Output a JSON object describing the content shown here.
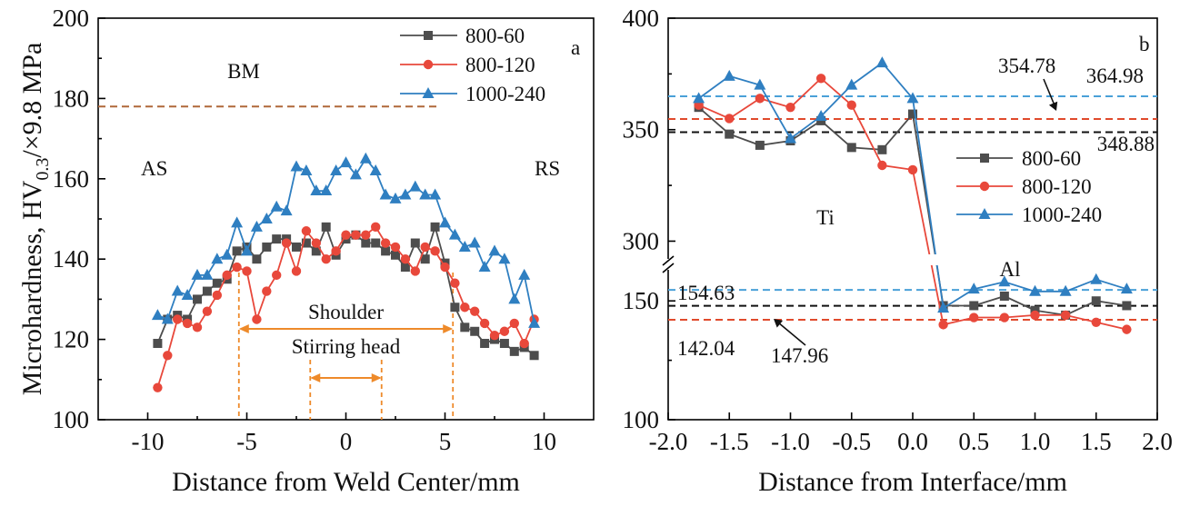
{
  "colors": {
    "s1": "#4d4d4d",
    "s2": "#e8483b",
    "s3": "#2f7fc1",
    "bm": "#b0683a",
    "orange": "#ee8a2a",
    "ref_black": "#111111",
    "ref_red": "#e04a2c",
    "ref_blue": "#4aa0d8"
  },
  "chart_data": [
    {
      "type": "line",
      "panel_label": "a",
      "ylabel": "Microhardness, HV0.3/×9.8 MPa",
      "xlabel": "Distance from Weld Center/mm",
      "xlim": [
        -12.5,
        12.5
      ],
      "ylim": [
        100,
        200
      ],
      "xticks": [
        -10,
        -5,
        0,
        5,
        10
      ],
      "yticks": [
        100,
        120,
        140,
        160,
        180,
        200
      ],
      "legend_position": "top-right",
      "series": [
        {
          "name": "800-60",
          "color": "#4d4d4d",
          "marker": "square",
          "x": [
            -9.5,
            -9.0,
            -8.5,
            -8.0,
            -7.5,
            -7.0,
            -6.5,
            -6.0,
            -5.5,
            -5.0,
            -4.5,
            -4.0,
            -3.5,
            -3.0,
            -2.5,
            -2.0,
            -1.5,
            -1.0,
            -0.5,
            0.0,
            0.5,
            1.0,
            1.5,
            2.0,
            2.5,
            3.0,
            3.5,
            4.0,
            4.5,
            5.0,
            5.5,
            6.0,
            6.5,
            7.0,
            7.5,
            8.0,
            8.5,
            9.0,
            9.5
          ],
          "y": [
            119,
            125,
            126,
            125,
            130,
            132,
            134,
            135,
            142,
            143,
            140,
            143,
            145,
            145,
            143,
            144,
            142,
            148,
            141,
            145,
            146,
            144,
            144,
            142,
            141,
            138,
            144,
            140,
            148,
            139,
            128,
            123,
            122,
            119,
            120,
            119,
            117,
            118,
            116
          ]
        },
        {
          "name": "800-120",
          "color": "#e8483b",
          "marker": "circle",
          "x": [
            -9.5,
            -9.0,
            -8.5,
            -8.0,
            -7.5,
            -7.0,
            -6.5,
            -6.0,
            -5.5,
            -5.0,
            -4.5,
            -4.0,
            -3.5,
            -3.0,
            -2.5,
            -2.0,
            -1.5,
            -1.0,
            -0.5,
            0.0,
            0.5,
            1.0,
            1.5,
            2.0,
            2.5,
            3.0,
            3.5,
            4.0,
            4.5,
            5.0,
            5.5,
            6.0,
            6.5,
            7.0,
            7.5,
            8.0,
            8.5,
            9.0,
            9.5
          ],
          "y": [
            108,
            116,
            125,
            124,
            123,
            127,
            131,
            136,
            138,
            137,
            125,
            132,
            136,
            144,
            137,
            147,
            144,
            140,
            142,
            146,
            146,
            146,
            148,
            144,
            143,
            140,
            137,
            143,
            142,
            138,
            134,
            128,
            127,
            124,
            121,
            122,
            124,
            119,
            125
          ]
        },
        {
          "name": "1000-240",
          "color": "#2f7fc1",
          "marker": "triangle",
          "x": [
            -9.5,
            -9.0,
            -8.5,
            -8.0,
            -7.5,
            -7.0,
            -6.5,
            -6.0,
            -5.5,
            -5.0,
            -4.5,
            -4.0,
            -3.5,
            -3.0,
            -2.5,
            -2.0,
            -1.5,
            -1.0,
            -0.5,
            0.0,
            0.5,
            1.0,
            1.5,
            2.0,
            2.5,
            3.0,
            3.5,
            4.0,
            4.5,
            5.0,
            5.5,
            6.0,
            6.5,
            7.0,
            7.5,
            8.0,
            8.5,
            9.0,
            9.5
          ],
          "y": [
            126,
            125,
            132,
            131,
            136,
            136,
            140,
            141,
            149,
            142,
            148,
            150,
            153,
            152,
            163,
            162,
            157,
            157,
            162,
            164,
            161,
            165,
            162,
            156,
            155,
            156,
            158,
            156,
            156,
            149,
            146,
            143,
            144,
            138,
            142,
            140,
            130,
            136,
            124
          ]
        }
      ],
      "annotations": {
        "bm_label": "BM",
        "bm_value": 178,
        "as_label": "AS",
        "rs_label": "RS",
        "shoulder_label": "Shoulder",
        "shoulder_range": [
          -5.4,
          5.4
        ],
        "stirring_label": "Stirring head",
        "stirring_range": [
          -1.8,
          1.8
        ]
      }
    },
    {
      "type": "line",
      "panel_label": "b",
      "xlabel": "Distance from Interface/mm",
      "xlim": [
        -2.0,
        2.0
      ],
      "ylim": [
        100,
        400
      ],
      "axis_break": [
        165,
        290
      ],
      "xticks": [
        -2.0,
        -1.5,
        -1.0,
        -0.5,
        0.0,
        0.5,
        1.0,
        1.5,
        2.0
      ],
      "xtick_labels": [
        "-2.0",
        "-1.5",
        "-1.0",
        "-0.5",
        "0.0",
        "0.5",
        "1.0",
        "1.5",
        "2.0"
      ],
      "yticks": [
        100,
        150,
        300,
        350,
        400
      ],
      "legend_position": "center-right",
      "series": [
        {
          "name": "800-60",
          "color": "#4d4d4d",
          "marker": "square",
          "x": [
            -1.75,
            -1.5,
            -1.25,
            -1.0,
            -0.75,
            -0.5,
            -0.25,
            0.0,
            0.25,
            0.5,
            0.75,
            1.0,
            1.25,
            1.5,
            1.75
          ],
          "y": [
            360,
            348,
            343,
            345,
            354,
            342,
            341,
            357,
            148,
            148,
            152,
            146,
            144,
            150,
            148
          ]
        },
        {
          "name": "800-120",
          "color": "#e8483b",
          "marker": "circle",
          "x": [
            -1.75,
            -1.5,
            -1.25,
            -1.0,
            -0.75,
            -0.5,
            -0.25,
            0.0,
            0.25,
            0.5,
            0.75,
            1.0,
            1.25,
            1.5,
            1.75
          ],
          "y": [
            361,
            355,
            364,
            360,
            373,
            361,
            334,
            332,
            140,
            143,
            143,
            144,
            144,
            141,
            138
          ]
        },
        {
          "name": "1000-240",
          "color": "#2f7fc1",
          "marker": "triangle",
          "x": [
            -1.75,
            -1.5,
            -1.25,
            -1.0,
            -0.75,
            -0.5,
            -0.25,
            0.0,
            0.25,
            0.5,
            0.75,
            1.0,
            1.25,
            1.5,
            1.75
          ],
          "y": [
            364,
            374,
            370,
            346,
            356,
            370,
            380,
            364,
            147,
            155,
            158,
            154,
            154,
            159,
            155
          ]
        }
      ],
      "reference_lines": [
        {
          "value": 364.98,
          "label": "364.98",
          "color": "#4aa0d8"
        },
        {
          "value": 354.78,
          "label": "354.78",
          "color": "#e04a2c"
        },
        {
          "value": 348.88,
          "label": "348.88",
          "color": "#111111"
        },
        {
          "value": 154.63,
          "label": "154.63",
          "color": "#4aa0d8"
        },
        {
          "value": 147.96,
          "label": "147.96",
          "color": "#111111"
        },
        {
          "value": 142.04,
          "label": "142.04",
          "color": "#e04a2c"
        }
      ],
      "annotations": {
        "ti_label": "Ti",
        "al_label": "Al"
      }
    }
  ]
}
